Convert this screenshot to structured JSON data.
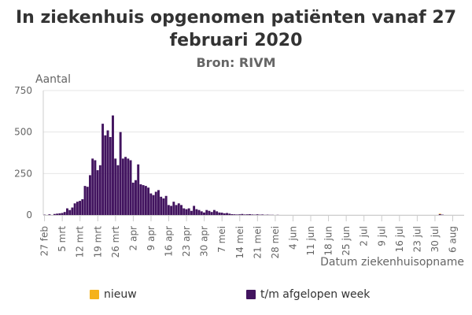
{
  "chart_data": {
    "type": "bar",
    "stacked": true,
    "title": "In ziekenhuis opgenomen patiënten vanaf 27 februari 2020",
    "subtitle": "Bron: RIVM",
    "ylabel": "Aantal",
    "xlabel": "Datum ziekenhuisopname",
    "ylim": [
      0,
      750
    ],
    "yticks": [
      0,
      250,
      500,
      750
    ],
    "start_date": "27 feb",
    "num_days": 166,
    "xtick_labels": [
      "27 feb",
      "5 mrt",
      "12 mrt",
      "19 mrt",
      "26 mrt",
      "2 apr",
      "9 apr",
      "16 apr",
      "23 apr",
      "30 apr",
      "7 mei",
      "14 mei",
      "21 mei",
      "28 mei",
      "4 jun",
      "11 jun",
      "18 jun",
      "25 jun",
      "2 jul",
      "9 jul",
      "16 jul",
      "23 jul",
      "30 jul",
      "6 aug"
    ],
    "series": [
      {
        "name": "nieuw",
        "color": "#f5b21b",
        "values": [
          0,
          0,
          0,
          0,
          0,
          0,
          0,
          0,
          0,
          0,
          0,
          0,
          0,
          0,
          0,
          0,
          0,
          0,
          0,
          0,
          0,
          0,
          0,
          0,
          0,
          0,
          0,
          0,
          0,
          0,
          0,
          0,
          0,
          0,
          0,
          0,
          0,
          0,
          0,
          0,
          0,
          0,
          0,
          0,
          0,
          0,
          0,
          0,
          0,
          0,
          0,
          0,
          0,
          0,
          0,
          0,
          0,
          0,
          0,
          0,
          0,
          0,
          0,
          0,
          0,
          0,
          0,
          0,
          0,
          0,
          0,
          0,
          0,
          0,
          0,
          0,
          0,
          0,
          0,
          0,
          0,
          0,
          0,
          0,
          0,
          0,
          0,
          0,
          0,
          0,
          0,
          0,
          0,
          0,
          0,
          0,
          0,
          0,
          0,
          0,
          0,
          0,
          0,
          0,
          0,
          0,
          0,
          0,
          0,
          0,
          0,
          0,
          0,
          0,
          0,
          0,
          0,
          0,
          0,
          0,
          0,
          0,
          0,
          0,
          0,
          0,
          0,
          0,
          0,
          0,
          0,
          0,
          0,
          0,
          0,
          0,
          0,
          0,
          0,
          0,
          0,
          0,
          0,
          0,
          0,
          0,
          0,
          0,
          0,
          0,
          0,
          0,
          0,
          0,
          0,
          0,
          3,
          0,
          0,
          0,
          0,
          0,
          0,
          0,
          0,
          0
        ]
      },
      {
        "name": "t/m afgelopen week",
        "color": "#42145f",
        "values": [
          2,
          0,
          4,
          0,
          6,
          8,
          10,
          12,
          18,
          40,
          30,
          45,
          70,
          80,
          85,
          95,
          175,
          170,
          240,
          340,
          330,
          270,
          300,
          550,
          480,
          510,
          470,
          600,
          340,
          300,
          500,
          340,
          350,
          340,
          330,
          195,
          210,
          305,
          185,
          180,
          175,
          165,
          130,
          120,
          140,
          150,
          110,
          100,
          115,
          60,
          55,
          80,
          60,
          70,
          60,
          40,
          35,
          40,
          25,
          55,
          35,
          30,
          22,
          15,
          30,
          25,
          18,
          30,
          22,
          15,
          14,
          10,
          12,
          8,
          5,
          4,
          3,
          4,
          6,
          3,
          4,
          5,
          3,
          2,
          4,
          2,
          3,
          1,
          2,
          1,
          1,
          0,
          1,
          0,
          0,
          0,
          0,
          0,
          0,
          0,
          0,
          0,
          0,
          0,
          0,
          0,
          0,
          0,
          0,
          0,
          0,
          0,
          0,
          0,
          0,
          0,
          0,
          0,
          0,
          0,
          0,
          0,
          0,
          0,
          0,
          0,
          0,
          0,
          0,
          0,
          0,
          0,
          0,
          0,
          0,
          0,
          0,
          0,
          0,
          0,
          0,
          0,
          0,
          0,
          0,
          0,
          0,
          0,
          0,
          0,
          0,
          0,
          0,
          0,
          0,
          0,
          5,
          2,
          0,
          0,
          0,
          0,
          0,
          0,
          0,
          0
        ]
      }
    ]
  },
  "legend": [
    {
      "label": "nieuw",
      "color": "#f5b21b"
    },
    {
      "label": "t/m afgelopen week",
      "color": "#42145f"
    }
  ]
}
